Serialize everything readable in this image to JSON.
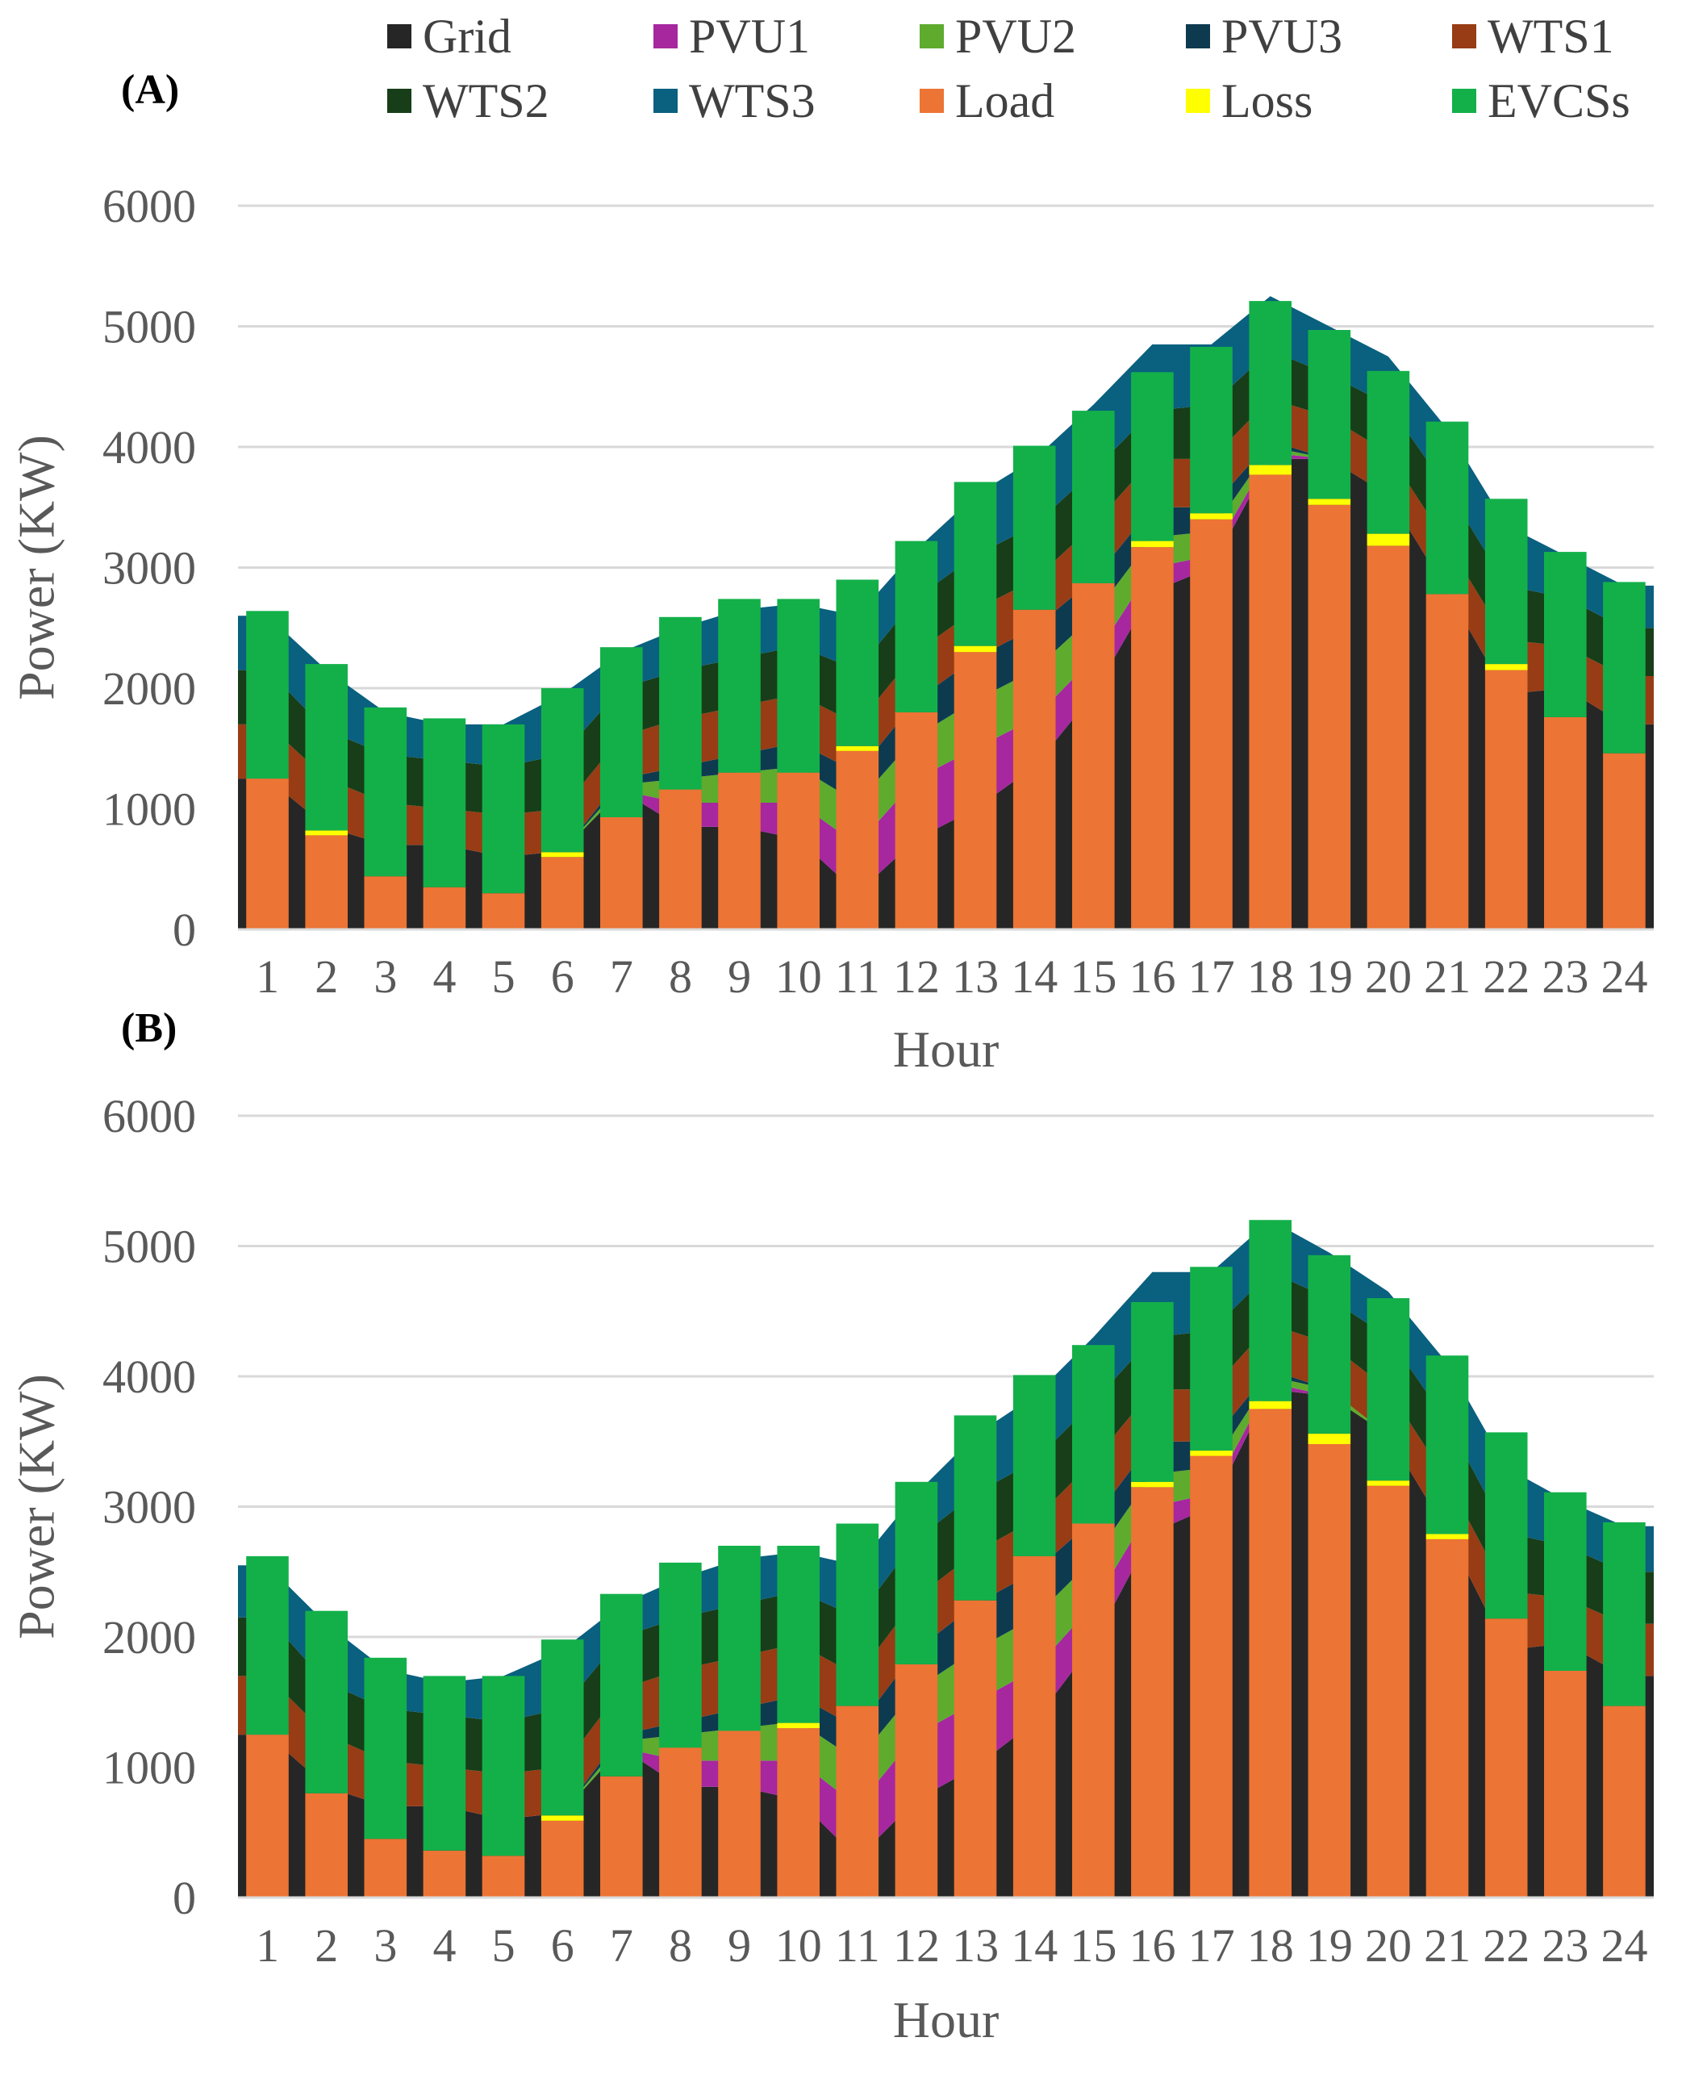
{
  "panels": [
    {
      "label": "(A)"
    },
    {
      "label": "(B)"
    }
  ],
  "legend": [
    {
      "name": "Grid",
      "color": "#262626"
    },
    {
      "name": "PVU1",
      "color": "#a6279e"
    },
    {
      "name": "PVU2",
      "color": "#5eab2e"
    },
    {
      "name": "PVU3",
      "color": "#0d3a4f"
    },
    {
      "name": "WTS1",
      "color": "#973c15"
    },
    {
      "name": "WTS2",
      "color": "#173e18"
    },
    {
      "name": "WTS3",
      "color": "#09607f"
    },
    {
      "name": "Load",
      "color": "#ec7434"
    },
    {
      "name": "Loss",
      "color": "#ffff00"
    },
    {
      "name": "EVCSs",
      "color": "#13b04a"
    }
  ],
  "chart_data": [
    {
      "type": "area",
      "title": "(A)",
      "xlabel": "Hour",
      "ylabel": "Power (KW)",
      "ylim": [
        0,
        6000
      ],
      "yticks": [
        0,
        1000,
        2000,
        3000,
        4000,
        5000,
        6000
      ],
      "grid": true,
      "categories": [
        1,
        2,
        3,
        4,
        5,
        6,
        7,
        8,
        9,
        10,
        11,
        12,
        13,
        14,
        15,
        16,
        17,
        18,
        19,
        20,
        21,
        22,
        23,
        24
      ],
      "area_series": [
        {
          "name": "Grid",
          "values": [
            1250,
            850,
            700,
            700,
            600,
            650,
            1150,
            850,
            850,
            750,
            300,
            750,
            1000,
            1350,
            1950,
            2800,
            3000,
            3900,
            3900,
            3600,
            2800,
            1950,
            2000,
            1700
          ]
        },
        {
          "name": "PVU1",
          "values": [
            0,
            0,
            0,
            0,
            0,
            0,
            0,
            200,
            200,
            300,
            400,
            500,
            500,
            400,
            300,
            200,
            100,
            50,
            0,
            0,
            0,
            0,
            0,
            0
          ]
        },
        {
          "name": "PVU2",
          "values": [
            0,
            0,
            0,
            0,
            0,
            0,
            50,
            200,
            250,
            300,
            350,
            350,
            400,
            400,
            350,
            250,
            200,
            50,
            0,
            0,
            0,
            0,
            0,
            0
          ]
        },
        {
          "name": "PVU3",
          "values": [
            0,
            0,
            0,
            0,
            0,
            0,
            50,
            100,
            150,
            200,
            250,
            300,
            350,
            350,
            300,
            250,
            200,
            50,
            0,
            0,
            0,
            0,
            0,
            0
          ]
        },
        {
          "name": "WTS1",
          "values": [
            450,
            400,
            350,
            300,
            350,
            350,
            350,
            400,
            400,
            400,
            400,
            400,
            400,
            400,
            450,
            400,
            400,
            350,
            350,
            350,
            400,
            450,
            350,
            400
          ]
        },
        {
          "name": "WTS2",
          "values": [
            450,
            400,
            400,
            400,
            400,
            450,
            400,
            400,
            400,
            400,
            450,
            450,
            450,
            450,
            450,
            400,
            450,
            400,
            350,
            400,
            450,
            450,
            400,
            400
          ]
        },
        {
          "name": "WTS3",
          "values": [
            450,
            500,
            350,
            300,
            350,
            500,
            300,
            350,
            400,
            350,
            450,
            400,
            500,
            550,
            550,
            550,
            500,
            450,
            400,
            400,
            500,
            500,
            350,
            350
          ]
        }
      ],
      "bar_series": [
        {
          "name": "Load",
          "values": [
            1250,
            780,
            440,
            350,
            300,
            600,
            930,
            1160,
            1300,
            1300,
            1480,
            1800,
            2300,
            2650,
            2870,
            3170,
            3400,
            3770,
            3520,
            3180,
            2780,
            2150,
            1760,
            1460
          ]
        },
        {
          "name": "Loss",
          "values": [
            0,
            40,
            0,
            0,
            0,
            40,
            0,
            0,
            0,
            0,
            40,
            0,
            50,
            0,
            0,
            50,
            50,
            80,
            50,
            100,
            0,
            50,
            0,
            0
          ]
        },
        {
          "name": "EVCSs",
          "values": [
            1390,
            1380,
            1400,
            1400,
            1400,
            1360,
            1410,
            1430,
            1440,
            1440,
            1380,
            1420,
            1360,
            1360,
            1430,
            1400,
            1380,
            1360,
            1400,
            1350,
            1430,
            1370,
            1370,
            1420
          ]
        }
      ]
    },
    {
      "type": "area",
      "title": "(B)",
      "xlabel": "Hour",
      "ylabel": "Power (KW)",
      "ylim": [
        0,
        6000
      ],
      "yticks": [
        0,
        1000,
        2000,
        3000,
        4000,
        5000,
        6000
      ],
      "grid": true,
      "categories": [
        1,
        2,
        3,
        4,
        5,
        6,
        7,
        8,
        9,
        10,
        11,
        12,
        13,
        14,
        15,
        16,
        17,
        18,
        19,
        20,
        21,
        22,
        23,
        24
      ],
      "area_series": [
        {
          "name": "Grid",
          "values": [
            1250,
            850,
            700,
            700,
            600,
            650,
            1150,
            850,
            850,
            750,
            300,
            750,
            1000,
            1350,
            1950,
            2800,
            3000,
            3900,
            3850,
            3550,
            2800,
            1900,
            1950,
            1700
          ]
        },
        {
          "name": "PVU1",
          "values": [
            0,
            0,
            0,
            0,
            0,
            0,
            0,
            200,
            200,
            300,
            400,
            500,
            500,
            400,
            300,
            200,
            100,
            50,
            0,
            0,
            0,
            0,
            0,
            0
          ]
        },
        {
          "name": "PVU2",
          "values": [
            0,
            0,
            0,
            0,
            0,
            0,
            50,
            200,
            250,
            300,
            350,
            350,
            400,
            400,
            350,
            250,
            200,
            50,
            50,
            0,
            0,
            0,
            0,
            0
          ]
        },
        {
          "name": "PVU3",
          "values": [
            0,
            0,
            0,
            0,
            0,
            0,
            50,
            100,
            150,
            200,
            250,
            300,
            350,
            350,
            300,
            250,
            200,
            50,
            0,
            0,
            0,
            0,
            0,
            0
          ]
        },
        {
          "name": "WTS1",
          "values": [
            450,
            400,
            350,
            300,
            350,
            350,
            350,
            400,
            400,
            400,
            400,
            400,
            400,
            400,
            450,
            400,
            400,
            350,
            350,
            350,
            400,
            450,
            350,
            400
          ]
        },
        {
          "name": "WTS2",
          "values": [
            450,
            400,
            400,
            400,
            400,
            450,
            400,
            400,
            400,
            400,
            450,
            450,
            450,
            450,
            450,
            400,
            450,
            400,
            350,
            400,
            450,
            450,
            400,
            400
          ]
        },
        {
          "name": "WTS3",
          "values": [
            400,
            450,
            300,
            250,
            350,
            450,
            250,
            300,
            350,
            300,
            400,
            350,
            450,
            500,
            500,
            500,
            450,
            400,
            350,
            350,
            450,
            500,
            350,
            350
          ]
        }
      ],
      "bar_series": [
        {
          "name": "Load",
          "values": [
            1250,
            800,
            450,
            360,
            320,
            590,
            930,
            1150,
            1280,
            1300,
            1470,
            1790,
            2280,
            2620,
            2870,
            3150,
            3390,
            3750,
            3480,
            3160,
            2750,
            2140,
            1740,
            1470
          ]
        },
        {
          "name": "Loss",
          "values": [
            0,
            0,
            0,
            0,
            0,
            40,
            0,
            0,
            0,
            40,
            0,
            0,
            0,
            0,
            0,
            40,
            40,
            60,
            80,
            40,
            40,
            0,
            0,
            0
          ]
        },
        {
          "name": "EVCSs",
          "values": [
            1370,
            1400,
            1390,
            1340,
            1380,
            1350,
            1400,
            1420,
            1420,
            1360,
            1400,
            1400,
            1420,
            1390,
            1370,
            1380,
            1410,
            1390,
            1370,
            1400,
            1370,
            1430,
            1370,
            1410
          ]
        }
      ]
    }
  ]
}
